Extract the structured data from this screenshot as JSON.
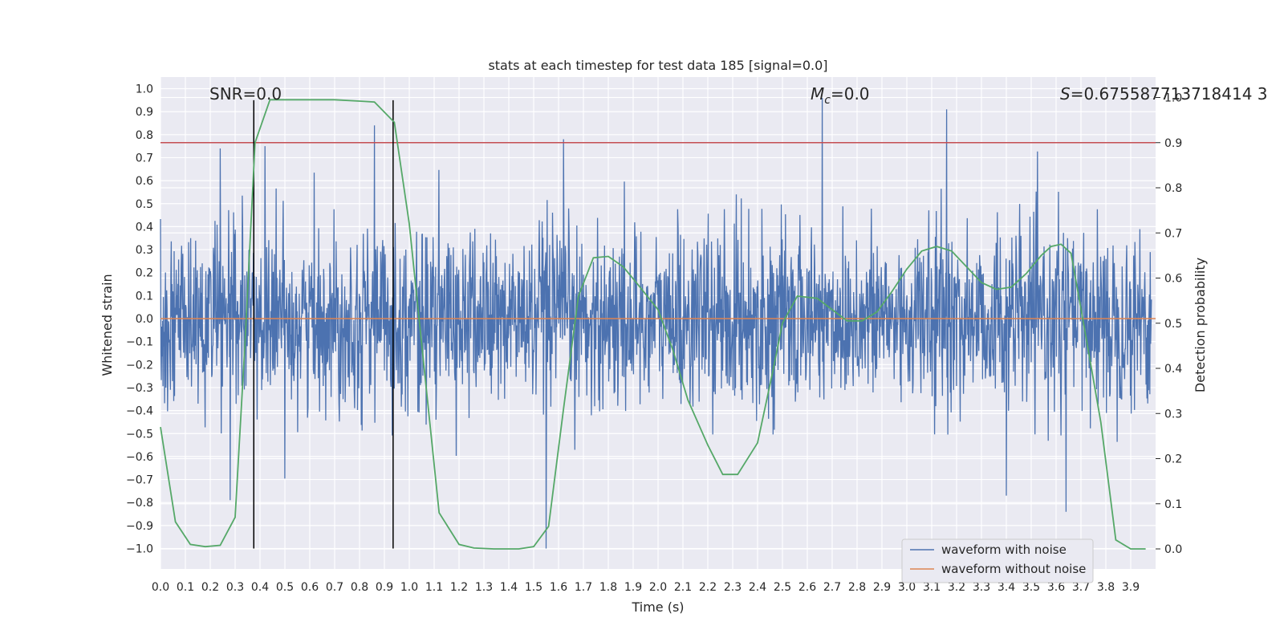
{
  "chart_data": {
    "type": "line",
    "title": "stats at each timestep for test data 185 [signal=0.0]",
    "xlabel": "Time (s)",
    "ylabel_left": "Whitened strain",
    "ylabel_right": "Detection probability",
    "xlim": [
      0.0,
      4.0
    ],
    "ylim_left": [
      -1.1,
      1.05
    ],
    "ylim_right": [
      -0.048,
      1.0
    ],
    "x_ticks": [
      "0.0",
      "0.1",
      "0.2",
      "0.3",
      "0.4",
      "0.5",
      "0.6",
      "0.7",
      "0.8",
      "0.9",
      "1.0",
      "1.1",
      "1.2",
      "1.3",
      "1.4",
      "1.5",
      "1.6",
      "1.7",
      "1.8",
      "1.9",
      "2.0",
      "2.1",
      "2.2",
      "2.3",
      "2.4",
      "2.5",
      "2.6",
      "2.7",
      "2.8",
      "2.9",
      "3.0",
      "3.1",
      "3.2",
      "3.3",
      "3.4",
      "3.5",
      "3.6",
      "3.7",
      "3.8",
      "3.9"
    ],
    "y_left_ticks": [
      "1.0",
      "0.9",
      "0.8",
      "0.7",
      "0.6",
      "0.5",
      "0.4",
      "0.3",
      "0.2",
      "0.1",
      "0.0",
      "−0.1",
      "−0.2",
      "−0.3",
      "−0.4",
      "−0.5",
      "−0.6",
      "−0.7",
      "−0.8",
      "−0.9",
      "−1.0"
    ],
    "y_right_ticks": [
      "1.0",
      "0.9",
      "0.8",
      "0.7",
      "0.6",
      "0.5",
      "0.4",
      "0.3",
      "0.2",
      "0.1",
      "0.0"
    ],
    "grid": true,
    "legend_placement": "lower-right",
    "annotations": {
      "snr": "SNR=0.0",
      "mc_symbol": "M",
      "mc_sub": "c",
      "mc_value": "=0.0",
      "s_symbol": "S",
      "s_value": "=0.675587713718414 3"
    },
    "series": [
      {
        "name": "waveform with noise",
        "axis": "left",
        "color": "#4c72b0",
        "description": "whitened noise, approx. Gaussian with std 0.2, peaks up to ~0.96 and down to ~-1.0"
      },
      {
        "name": "waveform without noise",
        "axis": "left",
        "color": "#dd8452",
        "value": 0.0
      },
      {
        "name": "detection probability",
        "axis": "right",
        "color": "#55a868",
        "x": [
          0.0,
          0.02,
          0.06,
          0.12,
          0.18,
          0.24,
          0.3,
          0.34,
          0.38,
          0.44,
          0.5,
          0.6,
          0.7,
          0.8,
          0.86,
          0.94,
          1.0,
          1.06,
          1.12,
          1.2,
          1.26,
          1.34,
          1.44,
          1.5,
          1.56,
          1.62,
          1.68,
          1.74,
          1.8,
          1.86,
          1.92,
          2.0,
          2.06,
          2.12,
          2.2,
          2.26,
          2.32,
          2.4,
          2.46,
          2.5,
          2.56,
          2.64,
          2.7,
          2.76,
          2.82,
          2.88,
          2.94,
          3.0,
          3.06,
          3.12,
          3.18,
          3.24,
          3.3,
          3.36,
          3.42,
          3.48,
          3.54,
          3.58,
          3.62,
          3.66,
          3.72,
          3.78,
          3.84,
          3.9,
          3.96
        ],
        "values": [
          0.27,
          0.2,
          0.06,
          0.01,
          0.005,
          0.008,
          0.07,
          0.46,
          0.9,
          0.995,
          0.995,
          0.995,
          0.995,
          0.992,
          0.99,
          0.945,
          0.72,
          0.4,
          0.08,
          0.01,
          0.002,
          0.0,
          0.0,
          0.005,
          0.05,
          0.31,
          0.56,
          0.645,
          0.648,
          0.625,
          0.585,
          0.53,
          0.44,
          0.33,
          0.23,
          0.165,
          0.165,
          0.235,
          0.39,
          0.5,
          0.56,
          0.555,
          0.53,
          0.505,
          0.505,
          0.525,
          0.57,
          0.62,
          0.66,
          0.67,
          0.66,
          0.625,
          0.59,
          0.575,
          0.58,
          0.61,
          0.65,
          0.67,
          0.675,
          0.655,
          0.47,
          0.28,
          0.02,
          0.0,
          0.0
        ]
      }
    ],
    "reference_lines": [
      {
        "name": "threshold",
        "axis": "right",
        "orientation": "horizontal",
        "value": 0.9,
        "color": "#c44e52"
      },
      {
        "name": "marker-start",
        "orientation": "vertical",
        "value": 0.375,
        "color": "#000000"
      },
      {
        "name": "marker-end",
        "orientation": "vertical",
        "value": 0.935,
        "color": "#000000"
      }
    ]
  }
}
